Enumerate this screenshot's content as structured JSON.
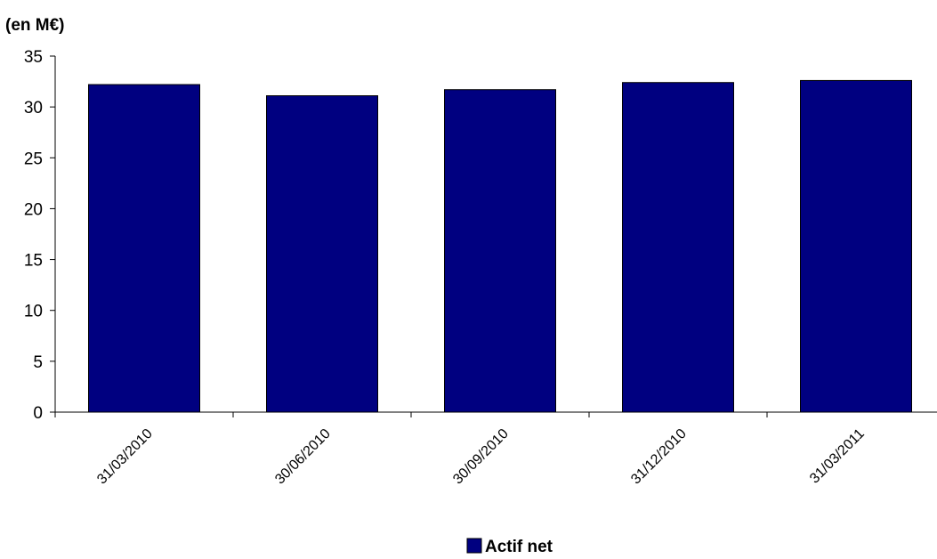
{
  "chart_data": {
    "type": "bar",
    "unit_label": "(en M€)",
    "categories": [
      "31/03/2010",
      "30/06/2010",
      "30/09/2010",
      "31/12/2010",
      "31/03/2011"
    ],
    "series": [
      {
        "name": "Actif net",
        "values": [
          32.2,
          31.1,
          31.7,
          32.4,
          32.6
        ],
        "color": "#000080"
      }
    ],
    "ylim": [
      0,
      35
    ],
    "yticks": [
      0,
      5,
      10,
      15,
      20,
      25,
      30,
      35
    ],
    "grid": false,
    "legend_position": "bottom-center"
  }
}
